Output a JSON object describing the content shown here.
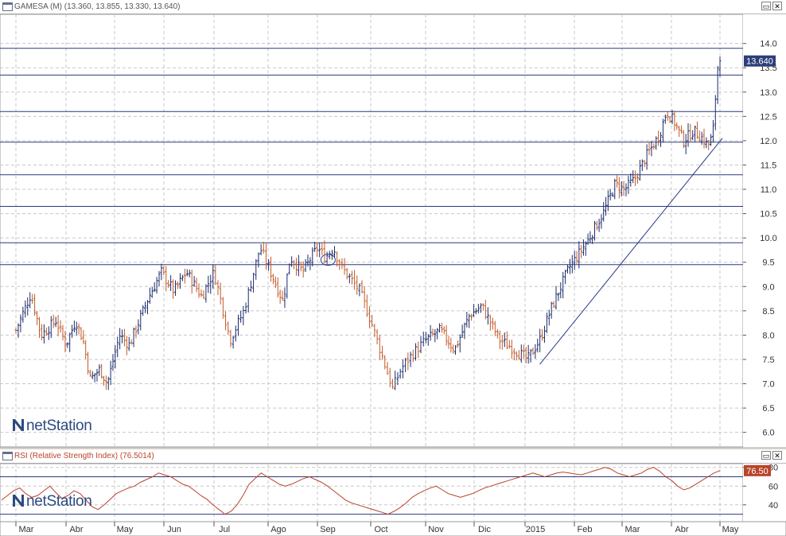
{
  "main_panel": {
    "title": "GAMESA (M) (13.360, 13.855, 13.330, 13.640)",
    "last_price_label": "13.640",
    "watermark": "netStation"
  },
  "rsi_panel": {
    "title": "RSI (Relative Strength Index) (76.5014)",
    "last_value_label": "76.50",
    "watermark": "netStation"
  },
  "controls": {
    "restore": "▭",
    "close": "✕"
  },
  "colors": {
    "up_bar": "#1a2a6c",
    "down_bar": "#c25a28",
    "hline": "#2a3a7a",
    "trendline": "#2a3a8a",
    "rsi_line": "#b8442a",
    "price_badge": "#2d3f7a"
  },
  "chart_data": [
    {
      "type": "ohlc",
      "title": "GAMESA (M) (13.360, 13.855, 13.330, 13.640)",
      "ylim": [
        5.7,
        14.6
      ],
      "yticks": [
        "6.0",
        "6.5",
        "7.0",
        "7.5",
        "8.0",
        "8.5",
        "9.0",
        "9.5",
        "10.0",
        "10.5",
        "11.0",
        "11.5",
        "12.0",
        "12.5",
        "13.0",
        "13.5",
        "14.0"
      ],
      "x_labels": [
        "Mar",
        "Abr",
        "May",
        "Jun",
        "Jul",
        "Ago",
        "Sep",
        "Oct",
        "Nov",
        "Dic",
        "2015",
        "Feb",
        "Mar",
        "Abr",
        "May"
      ],
      "last_price": 13.64,
      "anchors": [
        {
          "m": 0,
          "p": 8.1
        },
        {
          "m": 0.3,
          "p": 8.85
        },
        {
          "m": 0.5,
          "p": 8.0
        },
        {
          "m": 0.8,
          "p": 8.3
        },
        {
          "m": 1.0,
          "p": 7.8
        },
        {
          "m": 1.2,
          "p": 8.3
        },
        {
          "m": 1.35,
          "p": 7.9
        },
        {
          "m": 1.5,
          "p": 7.1
        },
        {
          "m": 1.7,
          "p": 7.3
        },
        {
          "m": 1.85,
          "p": 7.0
        },
        {
          "m": 2.1,
          "p": 8.0
        },
        {
          "m": 2.3,
          "p": 7.8
        },
        {
          "m": 2.7,
          "p": 8.8
        },
        {
          "m": 2.95,
          "p": 9.3
        },
        {
          "m": 3.2,
          "p": 8.9
        },
        {
          "m": 3.45,
          "p": 9.3
        },
        {
          "m": 3.75,
          "p": 8.8
        },
        {
          "m": 4.0,
          "p": 9.3
        },
        {
          "m": 4.3,
          "p": 7.9
        },
        {
          "m": 4.55,
          "p": 8.5
        },
        {
          "m": 4.85,
          "p": 9.8
        },
        {
          "m": 5.05,
          "p": 9.3
        },
        {
          "m": 5.3,
          "p": 8.7
        },
        {
          "m": 5.45,
          "p": 9.6
        },
        {
          "m": 5.7,
          "p": 9.3
        },
        {
          "m": 6.0,
          "p": 9.8
        },
        {
          "m": 6.15,
          "p": 9.6
        },
        {
          "m": 6.3,
          "p": 9.8
        },
        {
          "m": 6.45,
          "p": 9.4
        },
        {
          "m": 6.8,
          "p": 8.9
        },
        {
          "m": 7.0,
          "p": 8.3
        },
        {
          "m": 7.2,
          "p": 7.6
        },
        {
          "m": 7.4,
          "p": 6.9
        },
        {
          "m": 7.55,
          "p": 7.3
        },
        {
          "m": 7.75,
          "p": 7.6
        },
        {
          "m": 8.0,
          "p": 7.9
        },
        {
          "m": 8.3,
          "p": 8.1
        },
        {
          "m": 8.6,
          "p": 7.7
        },
        {
          "m": 8.9,
          "p": 8.4
        },
        {
          "m": 9.15,
          "p": 8.6
        },
        {
          "m": 9.3,
          "p": 8.3
        },
        {
          "m": 9.5,
          "p": 7.9
        },
        {
          "m": 9.8,
          "p": 7.7
        },
        {
          "m": 10.05,
          "p": 7.5
        },
        {
          "m": 10.3,
          "p": 7.9
        },
        {
          "m": 10.55,
          "p": 8.6
        },
        {
          "m": 10.9,
          "p": 9.4
        },
        {
          "m": 11.25,
          "p": 9.9
        },
        {
          "m": 11.6,
          "p": 10.5
        },
        {
          "m": 11.85,
          "p": 11.1
        },
        {
          "m": 12.05,
          "p": 11.0
        },
        {
          "m": 12.25,
          "p": 11.2
        },
        {
          "m": 12.5,
          "p": 11.7
        },
        {
          "m": 12.75,
          "p": 12.1
        },
        {
          "m": 12.9,
          "p": 12.6
        },
        {
          "m": 13.05,
          "p": 12.4
        },
        {
          "m": 13.25,
          "p": 12.0
        },
        {
          "m": 13.45,
          "p": 12.2
        },
        {
          "m": 13.6,
          "p": 12.1
        },
        {
          "m": 13.75,
          "p": 11.9
        },
        {
          "m": 13.85,
          "p": 12.1
        },
        {
          "m": 13.95,
          "p": 13.5
        },
        {
          "m": 14.0,
          "p": 13.64
        }
      ],
      "horizontal_lines": [
        13.9,
        13.35,
        12.6,
        11.97,
        11.3,
        10.65,
        9.9,
        9.45
      ],
      "trendline": [
        {
          "m": 10.3,
          "p": 7.4
        },
        {
          "m": 14.05,
          "p": 12.05
        }
      ],
      "circle": {
        "m": 6.2,
        "p": 9.55
      }
    },
    {
      "type": "line",
      "title": "RSI (Relative Strength Index) (76.5014)",
      "ylim": [
        22,
        84
      ],
      "yticks": [
        "40",
        "60",
        "80"
      ],
      "series": [
        {
          "values": [
            45,
            50,
            55,
            58,
            52,
            48,
            50,
            55,
            60,
            53,
            47,
            50,
            55,
            52,
            45,
            38,
            35,
            40,
            46,
            52,
            55,
            58,
            60,
            64,
            67,
            70,
            74,
            72,
            70,
            66,
            62,
            60,
            55,
            50,
            46,
            40,
            35,
            30,
            33,
            40,
            50,
            62,
            68,
            74,
            70,
            66,
            62,
            60,
            62,
            65,
            68,
            70,
            67,
            64,
            60,
            55,
            50,
            45,
            42,
            40,
            38,
            36,
            34,
            32,
            30,
            33,
            37,
            42,
            48,
            52,
            55,
            58,
            60,
            56,
            52,
            50,
            48,
            50,
            52,
            55,
            58,
            60,
            62,
            64,
            66,
            68,
            70,
            72,
            74,
            72,
            70,
            72,
            74,
            75,
            74,
            73,
            72,
            74,
            76,
            78,
            80,
            78,
            74,
            72,
            70,
            72,
            74,
            78,
            80,
            76,
            70,
            66,
            60,
            56,
            58,
            62,
            66,
            70,
            74,
            76.5
          ]
        }
      ]
    }
  ]
}
